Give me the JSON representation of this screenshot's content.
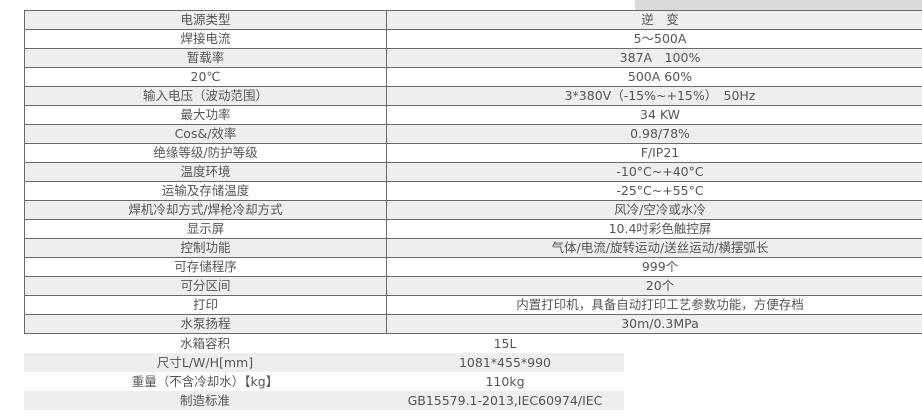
{
  "spec_rows": [
    {
      "label": "电源类型",
      "value": "逆　变"
    },
    {
      "label": "焊接电流",
      "value": "5～500A"
    },
    {
      "label": "暂载率",
      "value": "387A　100%"
    },
    {
      "label": "20℃",
      "value": "500A 60%"
    },
    {
      "label": "输入电压（波动范围）",
      "value": "3*380V（-15%~+15%）　50Hz"
    },
    {
      "label": "最大功率",
      "value": "34 KW"
    },
    {
      "label": "Cos&/效率",
      "value": "0.98/78%"
    },
    {
      "label": "绝缘等级/防护等级",
      "value": "F/IP21"
    },
    {
      "label": "温度环境",
      "value": "-10°C~+40°C"
    },
    {
      "label": "运输及存储温度",
      "value": "-25°C~+55°C"
    },
    {
      "label": "焊机冷却方式/焊枪冷却方式",
      "value": "风冷/空冷或水冷"
    },
    {
      "label": "显示屏",
      "value": "10.4吋彩色触控屏"
    },
    {
      "label": "控制功能",
      "value": "气体/电流/旋转运动/送丝运动/横摆弧长"
    },
    {
      "label": "可存储程序",
      "value": "999个"
    },
    {
      "label": "可分区间",
      "value": "20个"
    },
    {
      "label": "打印",
      "value": "内置打印机，具备自动打印工艺参数功能，方便存档"
    },
    {
      "label": "水泵扬程",
      "value": "30m/0.3MPa"
    }
  ],
  "extra_rows": [
    {
      "label": "水箱容积",
      "value": "15L"
    },
    {
      "label": "尺寸L/W/H[mm]",
      "value": "1081*455*990"
    },
    {
      "label": "重量（不含冷却水）【kg】",
      "value": "110kg"
    },
    {
      "label": "制造标准",
      "value": "GB15579.1-2013,IEC60974/IEC"
    }
  ]
}
